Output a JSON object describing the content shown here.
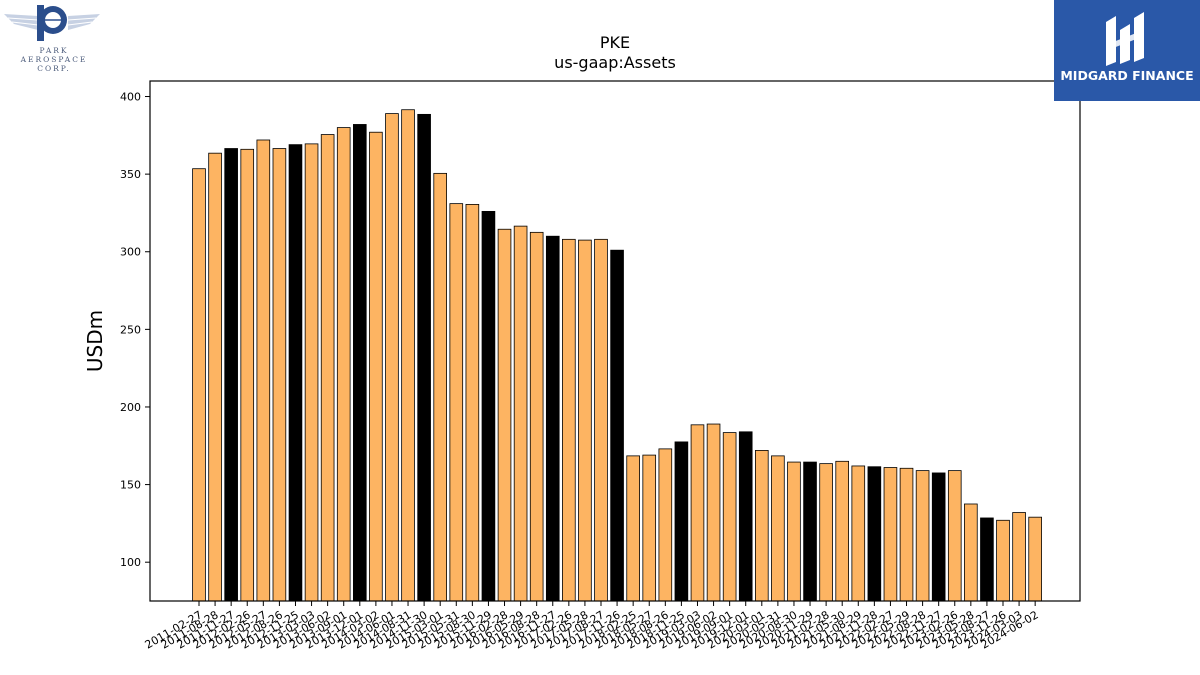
{
  "logos": {
    "left": {
      "name": "Park Aerospace Corp.",
      "line1": "PARK",
      "line2": "AEROSPACE",
      "line3": "CORP."
    },
    "right": {
      "name": "MIDGARD FINANCE"
    }
  },
  "chart_data": {
    "type": "bar",
    "title": "PKE",
    "subtitle": "us-gaap:Assets",
    "xlabel": "",
    "ylabel": "USDm",
    "ylim": [
      75,
      410
    ],
    "yticks": [
      100,
      150,
      200,
      250,
      300,
      350,
      400
    ],
    "grid": false,
    "colors": {
      "normal": "#fdb462",
      "highlight": "#000000",
      "edge": "#000000"
    },
    "tick_labels": [
      "2011-02-27",
      "2011-08-28",
      "2011-11-27",
      "2012-02-26",
      "2012-05-27",
      "2012-08-26",
      "2012-11-25",
      "2013-03-03",
      "2013-06-02",
      "2013-09-01",
      "2013-12-01",
      "2014-03-02",
      "2014-06-01",
      "2014-08-31",
      "2014-11-30",
      "2015-03-01",
      "2015-05-31",
      "2015-08-30",
      "2015-11-29",
      "2016-02-28",
      "2016-05-29",
      "2016-08-28",
      "2016-11-27",
      "2017-02-26",
      "2017-05-28",
      "2017-08-27",
      "2017-11-26",
      "2018-02-25",
      "2018-05-27",
      "2018-08-26",
      "2018-11-25",
      "2019-03-03",
      "2019-06-02",
      "2019-09-01",
      "2019-12-01",
      "2020-03-01",
      "2020-05-31",
      "2020-08-30",
      "2020-11-29",
      "2021-02-28",
      "2021-05-30",
      "2021-08-29",
      "2021-11-28",
      "2022-02-27",
      "2022-05-29",
      "2022-08-28",
      "2022-11-27",
      "2023-02-26",
      "2023-05-28",
      "2023-08-27",
      "2023-11-26",
      "2024-03-03",
      "2024-06-02"
    ],
    "values": [
      353.5,
      363.5,
      366.5,
      366,
      372,
      366.5,
      369,
      369.5,
      375.5,
      380,
      382,
      377,
      389,
      391.5,
      388.5,
      350.5,
      331,
      330.5,
      326,
      314.5,
      316.5,
      312.5,
      310,
      308,
      307.5,
      308,
      301,
      168.5,
      169,
      173,
      177.5,
      188.5,
      189,
      183.5,
      184,
      172,
      168.5,
      164.5,
      164.5,
      163.5,
      165,
      162,
      161.5,
      161,
      160.5,
      159,
      157.5,
      159,
      137.5,
      128.5,
      127,
      132,
      129
    ],
    "highlighted": [
      false,
      false,
      true,
      false,
      false,
      false,
      true,
      false,
      false,
      false,
      true,
      false,
      false,
      false,
      true,
      false,
      false,
      false,
      true,
      false,
      false,
      false,
      true,
      false,
      false,
      false,
      true,
      false,
      false,
      false,
      true,
      false,
      false,
      false,
      true,
      false,
      false,
      false,
      true,
      false,
      false,
      false,
      true,
      false,
      false,
      false,
      true,
      false,
      false,
      true,
      false,
      false,
      false
    ]
  }
}
